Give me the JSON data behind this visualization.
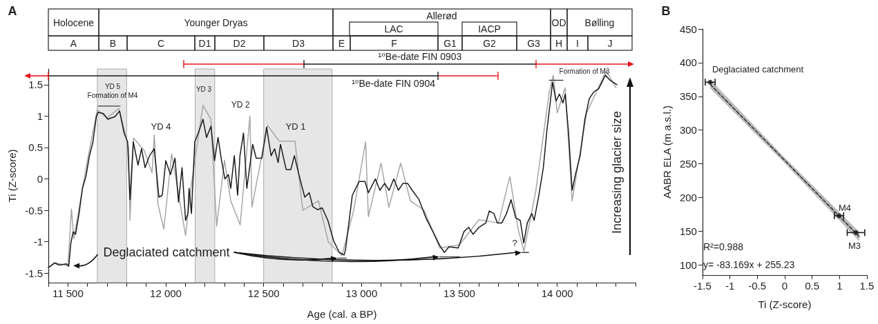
{
  "chart_data": [
    {
      "type": "line",
      "title": "A",
      "xlabel": "Age (cal. a BP)",
      "ylabel": "Ti (Z-score)",
      "xlim": [
        11400,
        14400
      ],
      "xticks": [
        {
          "value": 11400,
          "label": null
        },
        {
          "value": 11500,
          "label": "11 500"
        },
        {
          "value": 11600,
          "label": null
        },
        {
          "value": 11700,
          "label": null
        },
        {
          "value": 11800,
          "label": null
        },
        {
          "value": 11900,
          "label": null
        },
        {
          "value": 12000,
          "label": "12 000"
        },
        {
          "value": 12100,
          "label": null
        },
        {
          "value": 12200,
          "label": null
        },
        {
          "value": 12300,
          "label": null
        },
        {
          "value": 12400,
          "label": null
        },
        {
          "value": 12500,
          "label": "12 500"
        },
        {
          "value": 12600,
          "label": null
        },
        {
          "value": 12700,
          "label": null
        },
        {
          "value": 12800,
          "label": null
        },
        {
          "value": 12900,
          "label": null
        },
        {
          "value": 13000,
          "label": "13 000"
        },
        {
          "value": 13100,
          "label": null
        },
        {
          "value": 13200,
          "label": null
        },
        {
          "value": 13300,
          "label": null
        },
        {
          "value": 13400,
          "label": null
        },
        {
          "value": 13500,
          "label": "13 500"
        },
        {
          "value": 13600,
          "label": null
        },
        {
          "value": 13700,
          "label": null
        },
        {
          "value": 13800,
          "label": null
        },
        {
          "value": 13900,
          "label": null
        },
        {
          "value": 14000,
          "label": "14 000"
        },
        {
          "value": 14100,
          "label": null
        },
        {
          "value": 14200,
          "label": null
        },
        {
          "value": 14300,
          "label": null
        },
        {
          "value": 14400,
          "label": null
        }
      ],
      "ylim": [
        -1.65,
        1.75
      ],
      "yticks": [
        -1.5,
        -1,
        -0.5,
        0,
        0.5,
        1,
        1.5
      ],
      "series": [
        {
          "color": "#a6a6a6",
          "x": [
            11400,
            11430,
            11500,
            11518,
            11530,
            11600,
            11650,
            11700,
            11760,
            11810,
            11817,
            11835,
            11890,
            11930,
            11941,
            11960,
            11990,
            12030,
            12101,
            12130,
            12190,
            12230,
            12260,
            12300,
            12332,
            12380,
            12430,
            12440,
            12520,
            12580,
            12660,
            12700,
            12780,
            12830,
            12900,
            12960,
            13021,
            13035,
            13100,
            13140,
            13200,
            13250,
            13320,
            13400,
            13500,
            13600,
            13700,
            13758,
            13800,
            13830,
            13890,
            13960,
            13980,
            14000,
            14040,
            14076,
            14150,
            14250,
            14300
          ],
          "values": [
            -1.42,
            -1.33,
            -1.38,
            -0.48,
            -0.95,
            0.3,
            1.1,
            0.97,
            1.12,
            0.5,
            -0.66,
            0.65,
            0.45,
            0.1,
            0.7,
            -0.4,
            -0.8,
            0.4,
            -0.9,
            -0.1,
            1.17,
            0.95,
            -0.75,
            0.3,
            -0.35,
            -0.73,
            1.0,
            -0.45,
            0.85,
            0.6,
            0.6,
            -0.5,
            -0.35,
            -1.0,
            -1.22,
            -0.5,
            0.59,
            -0.6,
            0.25,
            -0.45,
            0.25,
            -0.35,
            -0.5,
            -1.1,
            -1.05,
            -0.65,
            -0.7,
            0.04,
            -0.8,
            -1.15,
            -0.2,
            1.4,
            1.65,
            1.05,
            1.45,
            -0.35,
            1.05,
            1.72,
            1.45
          ]
        },
        {
          "color": "#1a1a1a",
          "x": [
            11400,
            11433,
            11456,
            11492,
            11504,
            11515,
            11527,
            11539,
            11557,
            11574,
            11592,
            11610,
            11628,
            11645,
            11655,
            11681,
            11704,
            11740,
            11764,
            11787,
            11805,
            11817,
            11834,
            11858,
            11876,
            11894,
            11917,
            11941,
            11965,
            11982,
            12000,
            12024,
            12047,
            12065,
            12083,
            12101,
            12113,
            12119,
            12131,
            12148,
            12166,
            12190,
            12208,
            12231,
            12249,
            12267,
            12285,
            12302,
            12320,
            12332,
            12350,
            12367,
            12379,
            12397,
            12414,
            12444,
            12462,
            12491,
            12515,
            12538,
            12556,
            12574,
            12586,
            12615,
            12639,
            12657,
            12680,
            12710,
            12733,
            12751,
            12775,
            12799,
            12828,
            12858,
            12887,
            12911,
            12918,
            12953,
            12988,
            13018,
            13035,
            13071,
            13094,
            13118,
            13141,
            13165,
            13188,
            13212,
            13235,
            13259,
            13294,
            13329,
            13365,
            13400,
            13423,
            13447,
            13494,
            13523,
            13547,
            13570,
            13600,
            13635,
            13653,
            13676,
            13694,
            13717,
            13741,
            13764,
            13788,
            13811,
            13829,
            13847,
            13870,
            13882,
            13906,
            13929,
            13947,
            13964,
            13976,
            13994,
            14011,
            14029,
            14041,
            14058,
            14076,
            14093,
            14117,
            14141,
            14164,
            14188,
            14211,
            14246,
            14270,
            14305
          ],
          "values": [
            -1.41,
            -1.34,
            -1.37,
            -1.35,
            -1.39,
            -1.02,
            -0.84,
            -0.88,
            -0.55,
            -0.15,
            0.04,
            0.37,
            0.59,
            0.99,
            1.06,
            1.04,
            0.95,
            0.99,
            1.08,
            0.73,
            0.59,
            -0.33,
            0.59,
            0.22,
            0.48,
            0.18,
            0.37,
            0.48,
            -0.29,
            -0.26,
            0.29,
            0.07,
            0.33,
            -0.37,
            0.18,
            -0.66,
            -0.55,
            -0.15,
            -0.55,
            0.59,
            0.73,
            0.95,
            0.66,
            0.84,
            0.29,
            0.66,
            0.29,
            0.0,
            0.07,
            -0.15,
            0.37,
            -0.26,
            0.37,
            0.73,
            -0.15,
            0.55,
            0.33,
            0.33,
            0.82,
            0.37,
            0.48,
            0.26,
            0.55,
            0.15,
            0.15,
            0.37,
            0.07,
            -0.29,
            -0.22,
            -0.44,
            -0.49,
            -0.46,
            -0.66,
            -0.99,
            -1.17,
            -1.21,
            -1.13,
            -0.26,
            -0.04,
            -0.04,
            -0.22,
            0.0,
            -0.18,
            -0.07,
            -0.18,
            0.0,
            -0.18,
            -0.07,
            -0.07,
            -0.18,
            -0.33,
            -0.62,
            -0.84,
            -1.06,
            -1.17,
            -1.08,
            -1.1,
            -0.84,
            -0.77,
            -0.88,
            -0.77,
            -0.7,
            -0.51,
            -0.55,
            -0.7,
            -0.7,
            -0.55,
            -0.33,
            -0.62,
            -0.66,
            -1.02,
            -0.7,
            -0.55,
            -0.66,
            -0.26,
            0.18,
            0.77,
            1.21,
            1.54,
            1.24,
            1.35,
            1.21,
            1.35,
            0.73,
            -0.18,
            0.07,
            0.37,
            0.95,
            1.28,
            1.39,
            1.43,
            1.65,
            1.57,
            1.5
          ]
        },
        {
          "color": "#1a1a1a",
          "line_style": "dotted",
          "x": [
            11655,
            11766
          ],
          "values": [
            1.16,
            1.16
          ]
        },
        {
          "color": "#1a1a1a",
          "line_style": "dotted",
          "x": [
            13960,
            14030
          ],
          "values": [
            1.57,
            1.57
          ]
        },
        {
          "color": "#1a1a1a",
          "line_style": "dotted",
          "x": [
            12880,
            12925
          ],
          "values": [
            -1.26,
            -1.26
          ]
        },
        {
          "color": "#1a1a1a",
          "line_style": "dotted",
          "x": [
            13400,
            13502
          ],
          "values": [
            -1.24,
            -1.24
          ]
        },
        {
          "color": "#1a1a1a",
          "line_style": "dotted",
          "x": [
            13821,
            13853
          ],
          "values": [
            -1.17,
            -1.17
          ]
        }
      ],
      "bands": [
        {
          "axis": "x",
          "from": 11650,
          "to": 11800,
          "color": "#e6e6e6"
        },
        {
          "axis": "x",
          "from": 12150,
          "to": 12250,
          "color": "#e6e6e6"
        },
        {
          "axis": "x",
          "from": 12500,
          "to": 12850,
          "color": "#e6e6e6"
        }
      ],
      "annotations": [
        "Holocene",
        "Younger Dryas",
        "Allerød",
        "OD",
        "Bølling",
        "LAC",
        "IACP",
        "A",
        "B",
        "C",
        "D1",
        "D2",
        "D3",
        "E",
        "F",
        "G1",
        "G2",
        "G3",
        "H",
        "I",
        "J",
        "¹⁰Be-date FIN 0903",
        "¹⁰Be-date FIN 0904",
        "YD 5",
        "Formation of M4",
        "YD 4",
        "YD 3",
        "YD 2",
        "YD 1",
        "Formation of M3",
        {
          "text": "Deglaciated catchment",
          "x": 11520,
          "y": -1.38
        },
        "?",
        "Increasing glacier size"
      ]
    },
    {
      "type": "scatter",
      "title": "B",
      "xlabel": "Ti (Z-score)",
      "ylabel": "AABR ELA (m a.s.l.)",
      "marker": "circle",
      "xlim": [
        -1.5,
        1.5
      ],
      "xticks": [
        -1.5,
        -1,
        -0.5,
        0,
        0.5,
        1,
        1.5
      ],
      "ylim": [
        85,
        450
      ],
      "yticks": [
        100,
        150,
        200,
        250,
        300,
        350,
        400,
        450
      ],
      "series": [
        {
          "type": "line",
          "color": "#1a1a1a",
          "line_style": "dashed",
          "marker": "none",
          "x": [
            -1.36,
            0,
            1.36
          ],
          "values": [
            368,
            255,
            142
          ],
          "lower": [
            362,
            251,
            135
          ],
          "upper": [
            375,
            259,
            149
          ]
        },
        {
          "color": "#1a1a1a",
          "x": [
            -1.36,
            0.99,
            1.3
          ],
          "values": [
            371,
            173,
            148
          ],
          "xerrors": [
            0.09,
            0.085,
            [
              1.14,
              1.46
            ]
          ]
        }
      ],
      "annotations": [
        "Deglaciated catchment",
        "M4",
        "M3",
        "R²=0.988",
        "y= -83.169x + 255.23"
      ]
    }
  ]
}
